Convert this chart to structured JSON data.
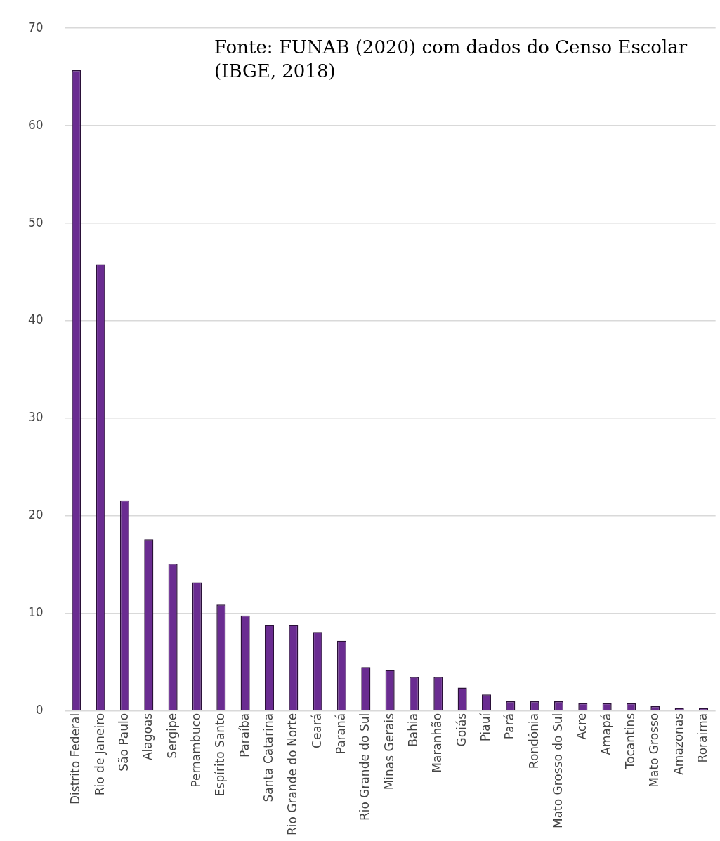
{
  "chart_data": {
    "type": "bar",
    "categories": [
      "Distrito Federal",
      "Rio de Janeiro",
      "São Paulo",
      "Alagoas",
      "Sergipe",
      "Pernambuco",
      "Espírito Santo",
      "Paraíba",
      "Santa Catarina",
      "Rio Grande do Norte",
      "Ceará",
      "Paraná",
      "Rio Grande do Sul",
      "Minas Gerais",
      "Bahia",
      "Maranhão",
      "Goiás",
      "Piauí",
      "Pará",
      "Rondônia",
      "Mato Grosso do Sul",
      "Acre",
      "Amapá",
      "Tocantins",
      "Mato Grosso",
      "Amazonas",
      "Roraima"
    ],
    "values": [
      65.7,
      45.8,
      21.6,
      17.6,
      15.1,
      13.2,
      10.9,
      9.8,
      8.8,
      8.8,
      8.1,
      7.2,
      4.5,
      4.2,
      3.5,
      3.5,
      2.4,
      1.7,
      1.0,
      1.0,
      1.0,
      0.8,
      0.8,
      0.8,
      0.5,
      0.3,
      0.3
    ],
    "color": "#6a2c91",
    "ylim": [
      0,
      70
    ],
    "yticks": [
      0,
      10,
      20,
      30,
      40,
      50,
      60,
      70
    ],
    "grid": "y",
    "annotations": [
      "Fonte: FUNAB (2020) com dados do Censo Escolar (IBGE, 2018)"
    ]
  }
}
